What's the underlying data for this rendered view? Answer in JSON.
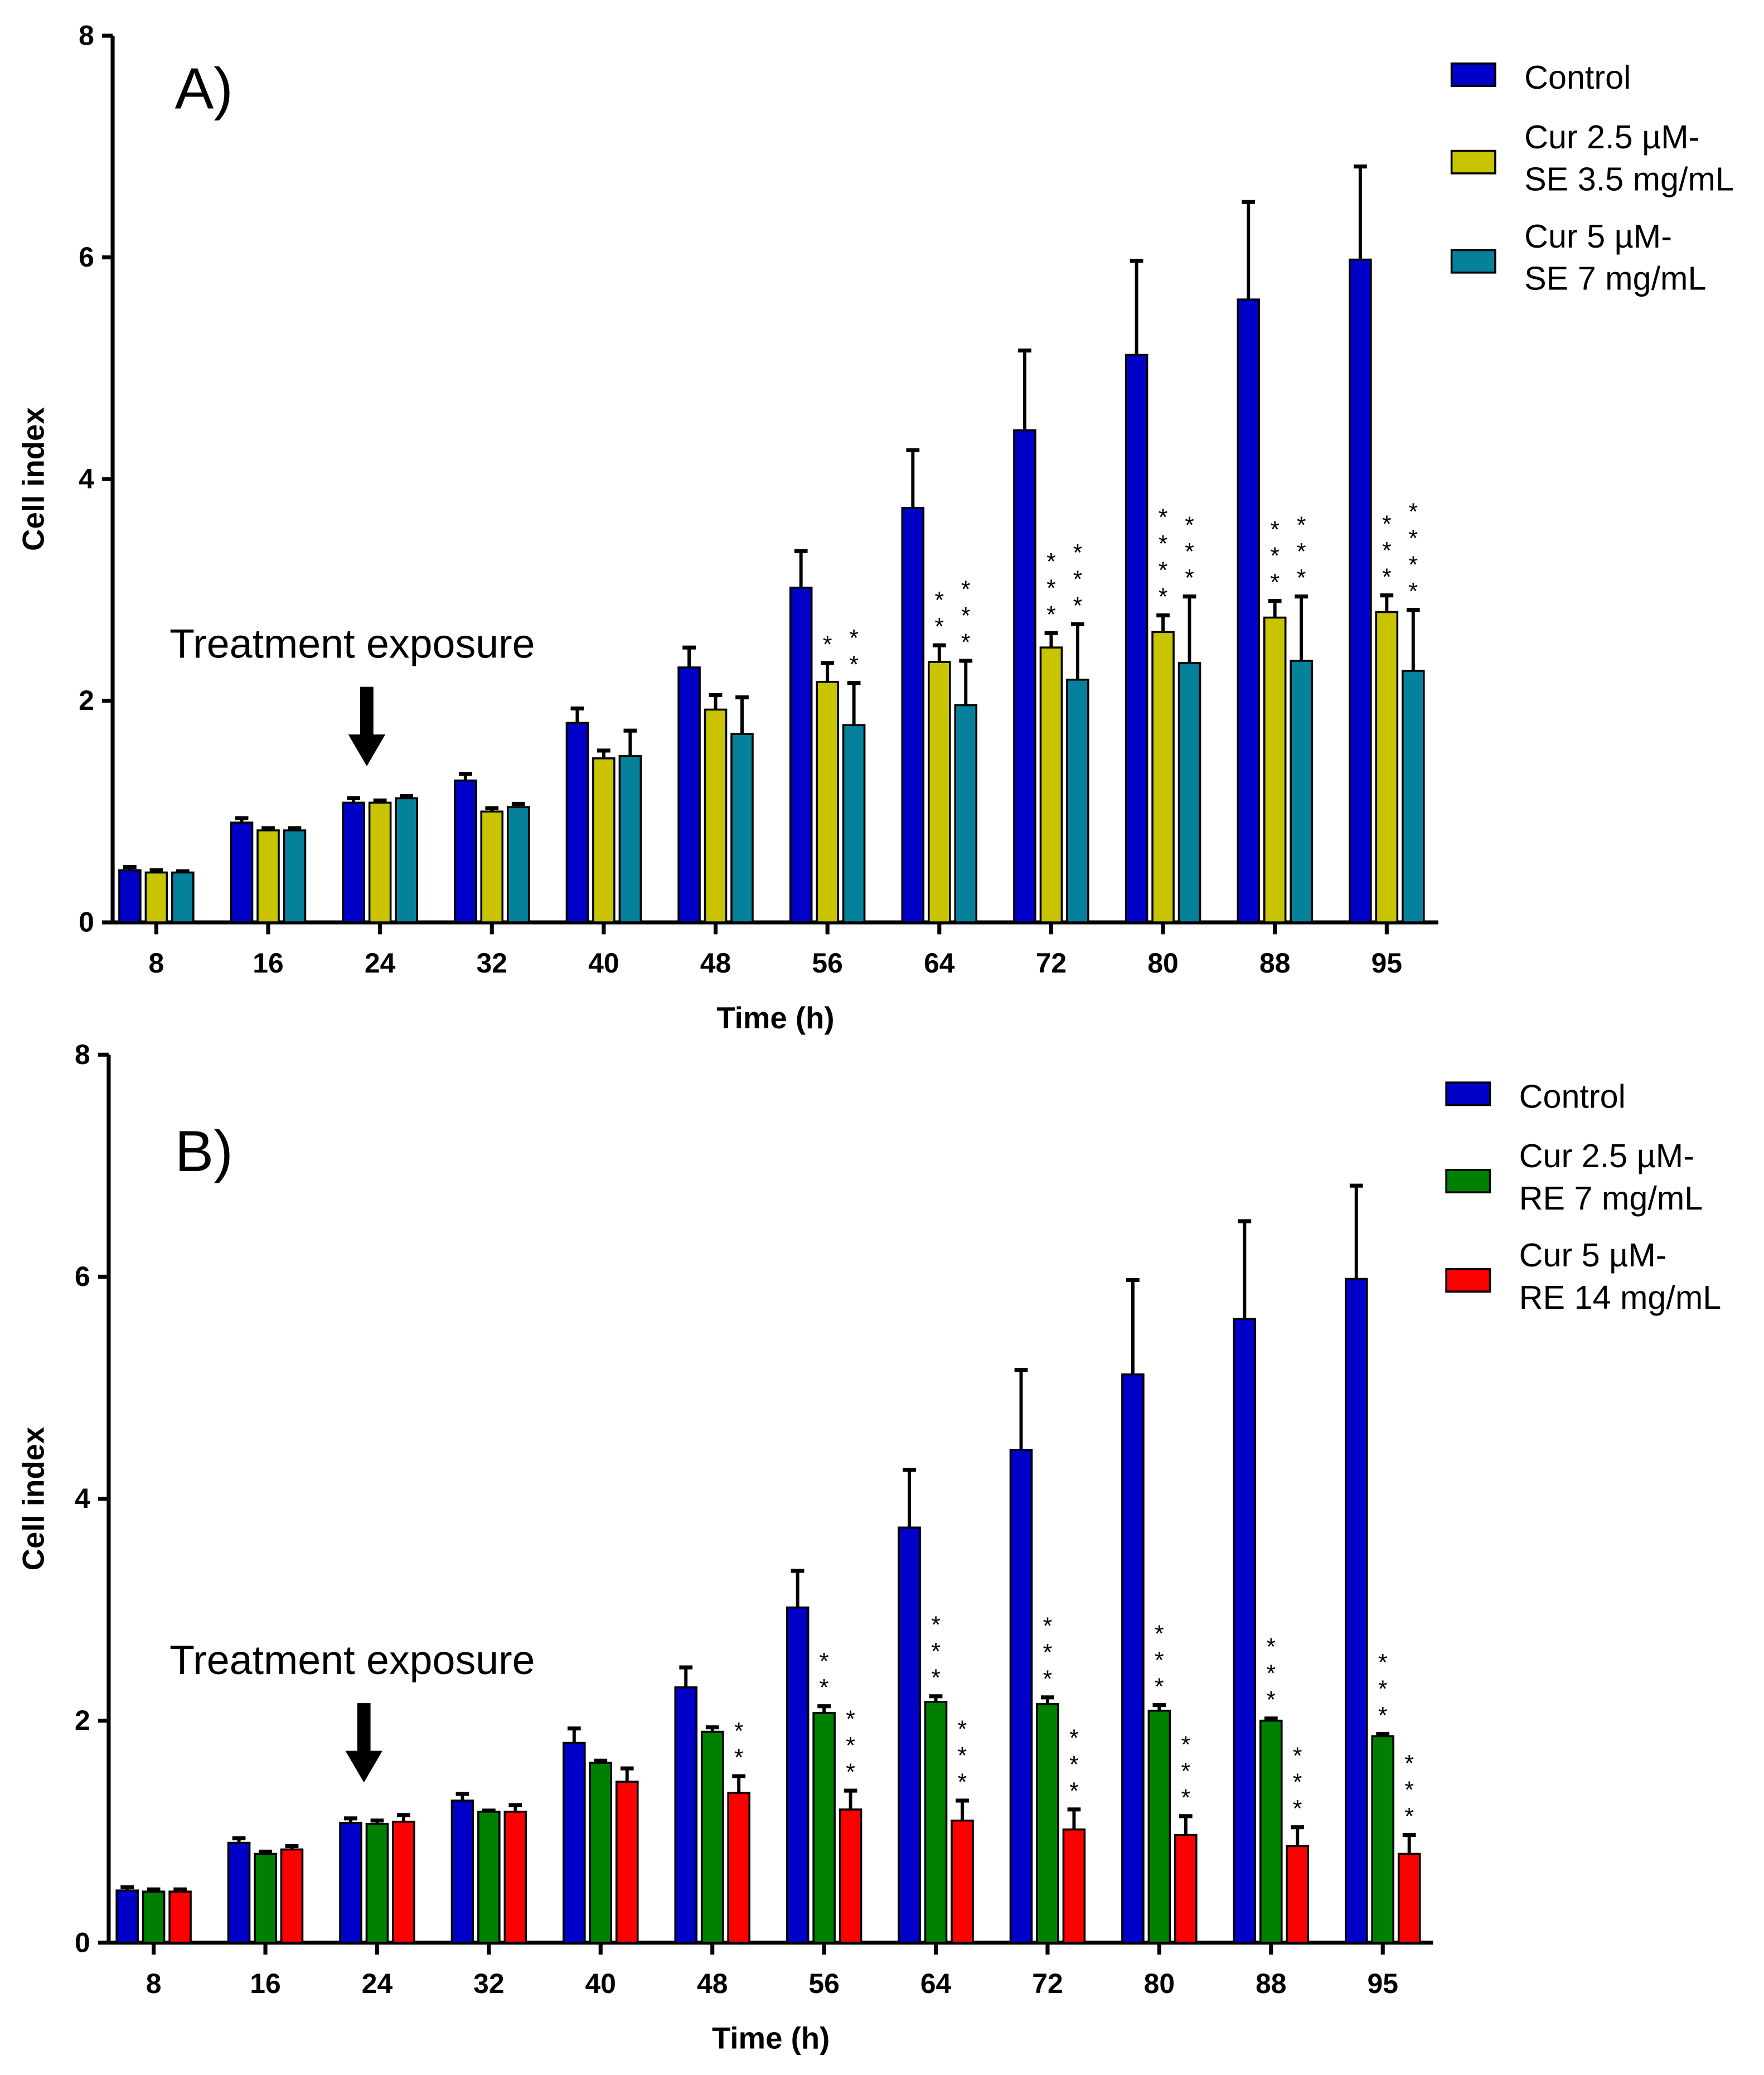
{
  "chart_data": [
    {
      "type": "bar",
      "panel_label": "A)",
      "annotation": "Treatment exposure",
      "annotation_at": "24",
      "xlabel": "Time (h)",
      "ylabel": "Cell index",
      "ylim": [
        0,
        8
      ],
      "yticks": [
        "0",
        "2",
        "4",
        "6",
        "8"
      ],
      "categories": [
        "8",
        "16",
        "24",
        "32",
        "40",
        "48",
        "56",
        "64",
        "72",
        "80",
        "88",
        "95"
      ],
      "legend_position": "top-right",
      "series": [
        {
          "name": "Control",
          "color": "#0000c8",
          "values": [
            0.47,
            0.9,
            1.08,
            1.28,
            1.8,
            2.3,
            3.02,
            3.74,
            4.44,
            5.12,
            5.62,
            5.98
          ],
          "errors": [
            0.03,
            0.04,
            0.04,
            0.06,
            0.13,
            0.18,
            0.33,
            0.52,
            0.72,
            0.85,
            0.88,
            0.84
          ],
          "stars": [
            "",
            "",
            "",
            "",
            "",
            "",
            "",
            "",
            "",
            "",
            "",
            ""
          ]
        },
        {
          "name": "Cur 2.5 µM-\nSE 3.5 mg/mL",
          "name_lines": [
            "Cur 2.5 µM-",
            "SE 3.5 mg/mL"
          ],
          "color": "#c8c400",
          "values": [
            0.45,
            0.83,
            1.08,
            1.0,
            1.48,
            1.92,
            2.17,
            2.35,
            2.48,
            2.62,
            2.75,
            2.8
          ],
          "errors": [
            0.02,
            0.02,
            0.02,
            0.03,
            0.07,
            0.13,
            0.17,
            0.15,
            0.13,
            0.15,
            0.15,
            0.15
          ],
          "stars": [
            "",
            "",
            "",
            "",
            "",
            "",
            "*",
            "**",
            "***",
            "****",
            "***",
            "***"
          ]
        },
        {
          "name": "Cur 5 µM-\nSE 7 mg/mL",
          "name_lines": [
            "Cur 5 µM-",
            "SE 7 mg/mL"
          ],
          "color": "#06819c",
          "values": [
            0.45,
            0.83,
            1.12,
            1.04,
            1.5,
            1.7,
            1.78,
            1.96,
            2.19,
            2.34,
            2.36,
            2.27
          ],
          "errors": [
            0.01,
            0.02,
            0.02,
            0.03,
            0.23,
            0.33,
            0.38,
            0.4,
            0.5,
            0.6,
            0.58,
            0.55
          ],
          "stars": [
            "",
            "",
            "",
            "",
            "",
            "",
            "**",
            "***",
            "***",
            "***",
            "***",
            "****"
          ]
        }
      ]
    },
    {
      "type": "bar",
      "panel_label": "B)",
      "annotation": "Treatment exposure",
      "annotation_at": "24",
      "xlabel": "Time (h)",
      "ylabel": "Cell index",
      "ylim": [
        0,
        8
      ],
      "yticks": [
        "0",
        "2",
        "4",
        "6",
        "8"
      ],
      "categories": [
        "8",
        "16",
        "24",
        "32",
        "40",
        "48",
        "56",
        "64",
        "72",
        "80",
        "88",
        "95"
      ],
      "legend_position": "top-right",
      "series": [
        {
          "name": "Control",
          "color": "#0000c8",
          "values": [
            0.47,
            0.9,
            1.08,
            1.28,
            1.8,
            2.3,
            3.02,
            3.74,
            4.44,
            5.12,
            5.62,
            5.98
          ],
          "errors": [
            0.03,
            0.04,
            0.04,
            0.06,
            0.13,
            0.18,
            0.33,
            0.52,
            0.72,
            0.85,
            0.88,
            0.84
          ],
          "stars": [
            "",
            "",
            "",
            "",
            "",
            "",
            "",
            "",
            "",
            "",
            "",
            ""
          ]
        },
        {
          "name": "Cur 2.5 µM-\nRE 7 mg/mL",
          "name_lines": [
            "Cur 2.5 µM-",
            "RE 7 mg/mL"
          ],
          "color": "#008000",
          "values": [
            0.46,
            0.8,
            1.07,
            1.18,
            1.62,
            1.9,
            2.07,
            2.17,
            2.15,
            2.09,
            2.0,
            1.86
          ],
          "errors": [
            0.02,
            0.02,
            0.03,
            0.01,
            0.02,
            0.04,
            0.06,
            0.05,
            0.06,
            0.05,
            0.02,
            0.02
          ],
          "stars": [
            "",
            "",
            "",
            "",
            "",
            "",
            "**",
            "***",
            "***",
            "***",
            "***",
            "***"
          ]
        },
        {
          "name": "Cur 5 µM-\nRE 14 mg/mL",
          "name_lines": [
            "Cur 5 µM-",
            "RE 14 mg/mL"
          ],
          "color": "#ff0000",
          "values": [
            0.46,
            0.84,
            1.09,
            1.18,
            1.45,
            1.35,
            1.2,
            1.1,
            1.02,
            0.97,
            0.87,
            0.8
          ],
          "errors": [
            0.02,
            0.03,
            0.06,
            0.06,
            0.12,
            0.15,
            0.17,
            0.18,
            0.18,
            0.17,
            0.17,
            0.17
          ],
          "stars": [
            "",
            "",
            "",
            "",
            "",
            "**",
            "***",
            "***",
            "***",
            "***",
            "***",
            "***"
          ]
        }
      ]
    }
  ]
}
